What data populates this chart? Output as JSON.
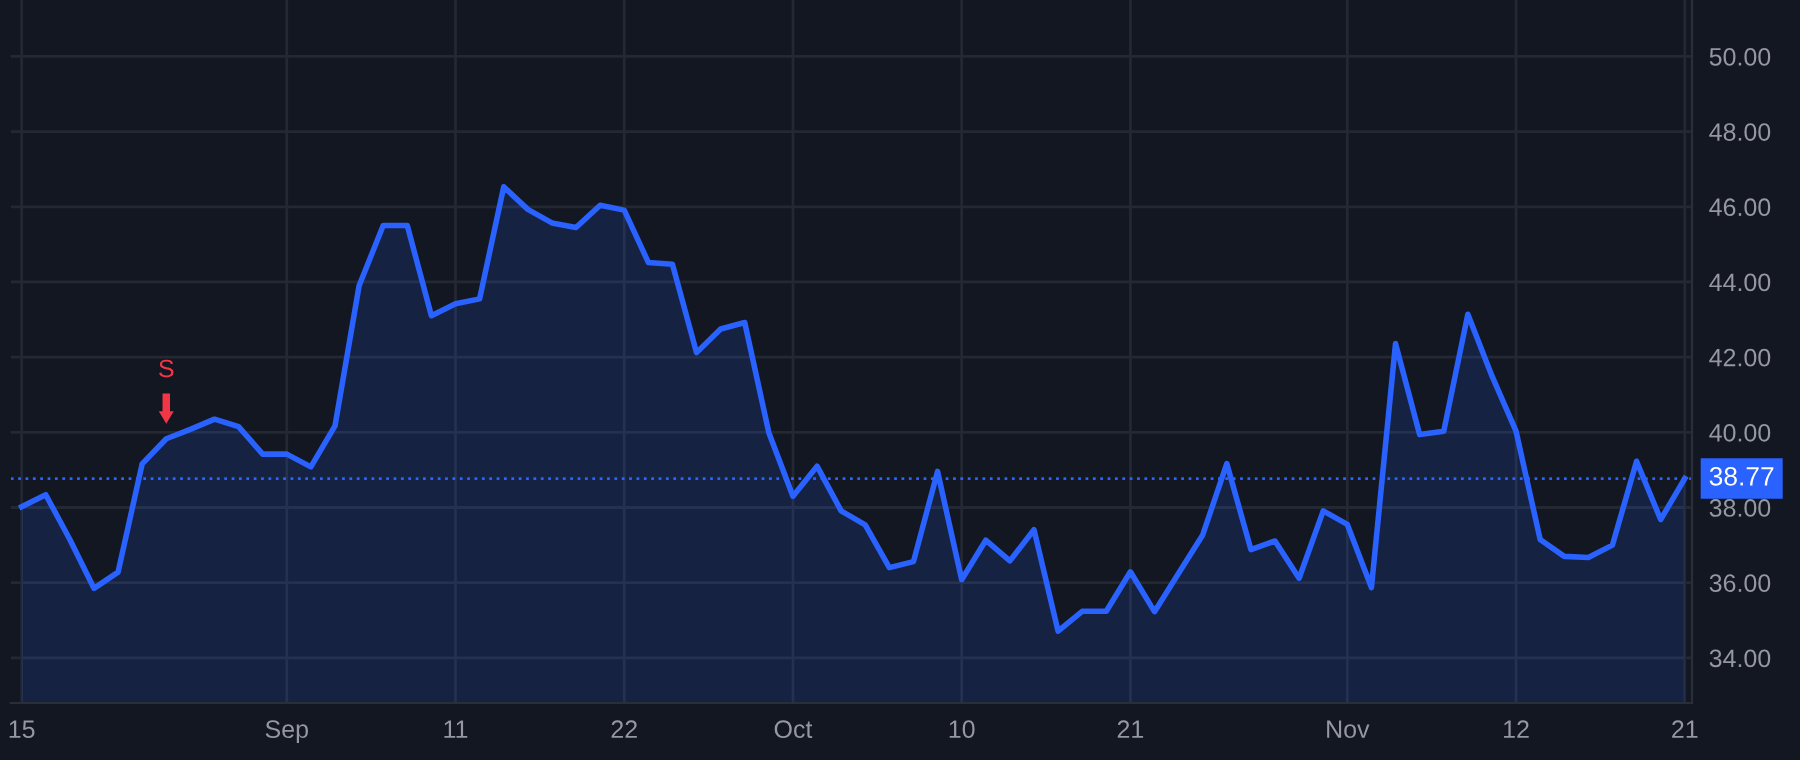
{
  "chart_data": {
    "type": "area",
    "categories": [
      "15",
      null,
      null,
      null,
      null,
      null,
      null,
      null,
      null,
      null,
      null,
      "Sep",
      null,
      null,
      null,
      null,
      null,
      null,
      "11",
      null,
      null,
      null,
      null,
      null,
      null,
      "22",
      null,
      null,
      null,
      null,
      null,
      null,
      "Oct",
      null,
      null,
      null,
      null,
      null,
      null,
      "10",
      null,
      null,
      null,
      null,
      null,
      null,
      "21",
      null,
      null,
      null,
      null,
      null,
      null,
      null,
      null,
      "Nov",
      null,
      null,
      null,
      null,
      null,
      null,
      "12",
      null,
      null,
      null,
      null,
      null,
      null,
      "21"
    ],
    "series": [
      {
        "color": "#2962ff",
        "values": [
          38.02,
          38.34,
          37.15,
          35.85,
          36.28,
          39.16,
          39.83,
          40.08,
          40.35,
          40.15,
          39.42,
          39.42,
          39.08,
          40.17,
          43.9,
          45.5,
          45.5,
          43.1,
          43.42,
          43.55,
          46.53,
          45.93,
          45.57,
          45.45,
          46.04,
          45.91,
          44.52,
          44.47,
          42.12,
          42.75,
          42.92,
          39.99,
          38.3,
          39.1,
          37.91,
          37.54,
          36.4,
          36.56,
          38.96,
          36.08,
          37.13,
          36.58,
          37.41,
          34.71,
          35.24,
          35.24,
          36.29,
          35.23,
          36.25,
          37.27,
          39.17,
          36.88,
          37.11,
          36.12,
          37.91,
          37.55,
          35.87,
          42.36,
          39.94,
          40.03,
          43.14,
          41.5,
          40.03,
          37.15,
          36.7,
          36.67,
          37.0,
          39.23,
          37.68,
          38.77
        ]
      }
    ],
    "ylim": [
      32.8,
      51.5
    ],
    "yticks": [
      {
        "value": 34,
        "label": "34.00"
      },
      {
        "value": 36,
        "label": "36.00"
      },
      {
        "value": 38,
        "label": "38.00"
      },
      {
        "value": 40,
        "label": "40.00"
      },
      {
        "value": 42,
        "label": "42.00"
      },
      {
        "value": 44,
        "label": "44.00"
      },
      {
        "value": 46,
        "label": "46.00"
      },
      {
        "value": 48,
        "label": "48.00"
      },
      {
        "value": 50,
        "label": "50.00"
      }
    ],
    "grid": true,
    "line_style": "solid",
    "ref_lines": [
      {
        "axis": "y",
        "value": 38.77,
        "label": "38.77",
        "color": "#2962ff",
        "line_style": "dotted"
      }
    ],
    "annotations": [
      {
        "text": "S",
        "y": 39.83
      }
    ]
  }
}
